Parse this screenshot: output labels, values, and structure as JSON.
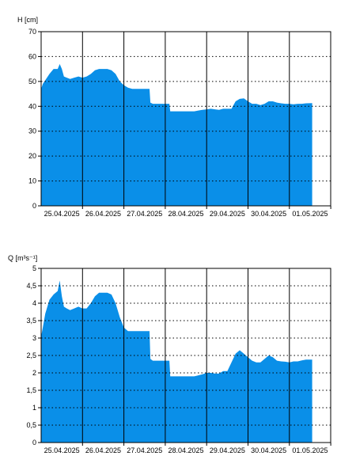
{
  "colors": {
    "area": "#0a8fe8",
    "frame": "#000000",
    "grid": "#000000",
    "background": "#ffffff"
  },
  "chart_data": [
    {
      "type": "area",
      "ylabel": "H [cm]",
      "ylim": [
        0,
        70
      ],
      "yticks": [
        "0",
        "10",
        "20",
        "30",
        "40",
        "50",
        "60",
        "70"
      ],
      "x_tick_labels": [
        "25.04.2025",
        "26.04.2025",
        "27.04.2025",
        "28.04.2025",
        "29.04.2025",
        "30.04.2025",
        "01.05.2025"
      ],
      "grid": true,
      "series": [
        {
          "x": [
            0,
            0.04,
            0.2,
            0.3,
            0.4,
            0.45,
            0.5,
            0.55,
            0.62,
            0.7,
            0.8,
            0.9,
            1.0,
            1.1,
            1.2,
            1.3,
            1.4,
            1.5,
            1.6,
            1.7,
            1.8,
            1.9,
            2.0,
            2.1,
            2.2,
            2.3,
            2.4,
            2.5,
            2.62,
            2.64,
            2.7,
            2.8,
            2.9,
            3.0,
            3.1,
            3.12,
            3.3,
            3.5,
            3.7,
            3.8,
            3.9,
            4.0,
            4.1,
            4.2,
            4.3,
            4.4,
            4.5,
            4.6,
            4.7,
            4.8,
            4.9,
            5.0,
            5.1,
            5.2,
            5.3,
            5.4,
            5.5,
            5.6,
            5.7,
            5.8,
            5.9,
            6.0,
            6.1,
            6.2,
            6.3,
            6.4,
            6.55
          ],
          "values": [
            47,
            49,
            53,
            55,
            55,
            57,
            55,
            52,
            51.5,
            51,
            51.5,
            52,
            51.5,
            52,
            53,
            54.5,
            55,
            55,
            55,
            54.5,
            53,
            50,
            48.5,
            47.5,
            47,
            47,
            47,
            47,
            47,
            41.5,
            41,
            41,
            41,
            41,
            41,
            38,
            38,
            38,
            38,
            38.3,
            38.6,
            38.8,
            39,
            38.8,
            38.6,
            39,
            39,
            39,
            42,
            43,
            43.2,
            42,
            41,
            41,
            40.5,
            41,
            42,
            42,
            41.5,
            41.2,
            41,
            41,
            40.8,
            41,
            41,
            41.2,
            41.3
          ]
        }
      ]
    },
    {
      "type": "area",
      "ylabel": "Q [m³s⁻¹]",
      "ylim": [
        0,
        5
      ],
      "yticks": [
        "0",
        "0,5",
        "1",
        "1,5",
        "2",
        "2,5",
        "3",
        "3,5",
        "4",
        "4,5",
        "5"
      ],
      "x_tick_labels": [
        "25.04.2025",
        "26.04.2025",
        "27.04.2025",
        "28.04.2025",
        "29.04.2025",
        "30.04.2025",
        "01.05.2025"
      ],
      "grid": true,
      "series": [
        {
          "x": [
            0,
            0.04,
            0.1,
            0.2,
            0.3,
            0.4,
            0.45,
            0.5,
            0.55,
            0.62,
            0.7,
            0.8,
            0.9,
            1.0,
            1.1,
            1.2,
            1.3,
            1.4,
            1.5,
            1.6,
            1.7,
            1.8,
            1.9,
            2.0,
            2.1,
            2.2,
            2.3,
            2.4,
            2.5,
            2.62,
            2.64,
            2.7,
            2.8,
            2.9,
            3.0,
            3.1,
            3.12,
            3.3,
            3.5,
            3.7,
            3.8,
            3.9,
            4.0,
            4.1,
            4.2,
            4.3,
            4.4,
            4.5,
            4.6,
            4.7,
            4.8,
            4.9,
            5.0,
            5.1,
            5.2,
            5.3,
            5.4,
            5.5,
            5.6,
            5.7,
            5.8,
            5.9,
            6.0,
            6.1,
            6.2,
            6.3,
            6.4,
            6.55
          ],
          "values": [
            3.05,
            3.3,
            3.7,
            4.1,
            4.25,
            4.35,
            4.65,
            4.2,
            3.9,
            3.85,
            3.8,
            3.85,
            3.9,
            3.85,
            3.85,
            4.0,
            4.2,
            4.3,
            4.3,
            4.3,
            4.25,
            4.0,
            3.6,
            3.3,
            3.2,
            3.2,
            3.2,
            3.2,
            3.2,
            3.2,
            2.4,
            2.35,
            2.35,
            2.35,
            2.35,
            2.35,
            1.9,
            1.9,
            1.9,
            1.9,
            1.93,
            1.96,
            2.0,
            2.0,
            1.98,
            1.98,
            2.05,
            2.05,
            2.3,
            2.55,
            2.65,
            2.55,
            2.45,
            2.35,
            2.3,
            2.3,
            2.4,
            2.5,
            2.45,
            2.35,
            2.33,
            2.32,
            2.3,
            2.33,
            2.33,
            2.36,
            2.38,
            2.38
          ]
        }
      ]
    }
  ]
}
